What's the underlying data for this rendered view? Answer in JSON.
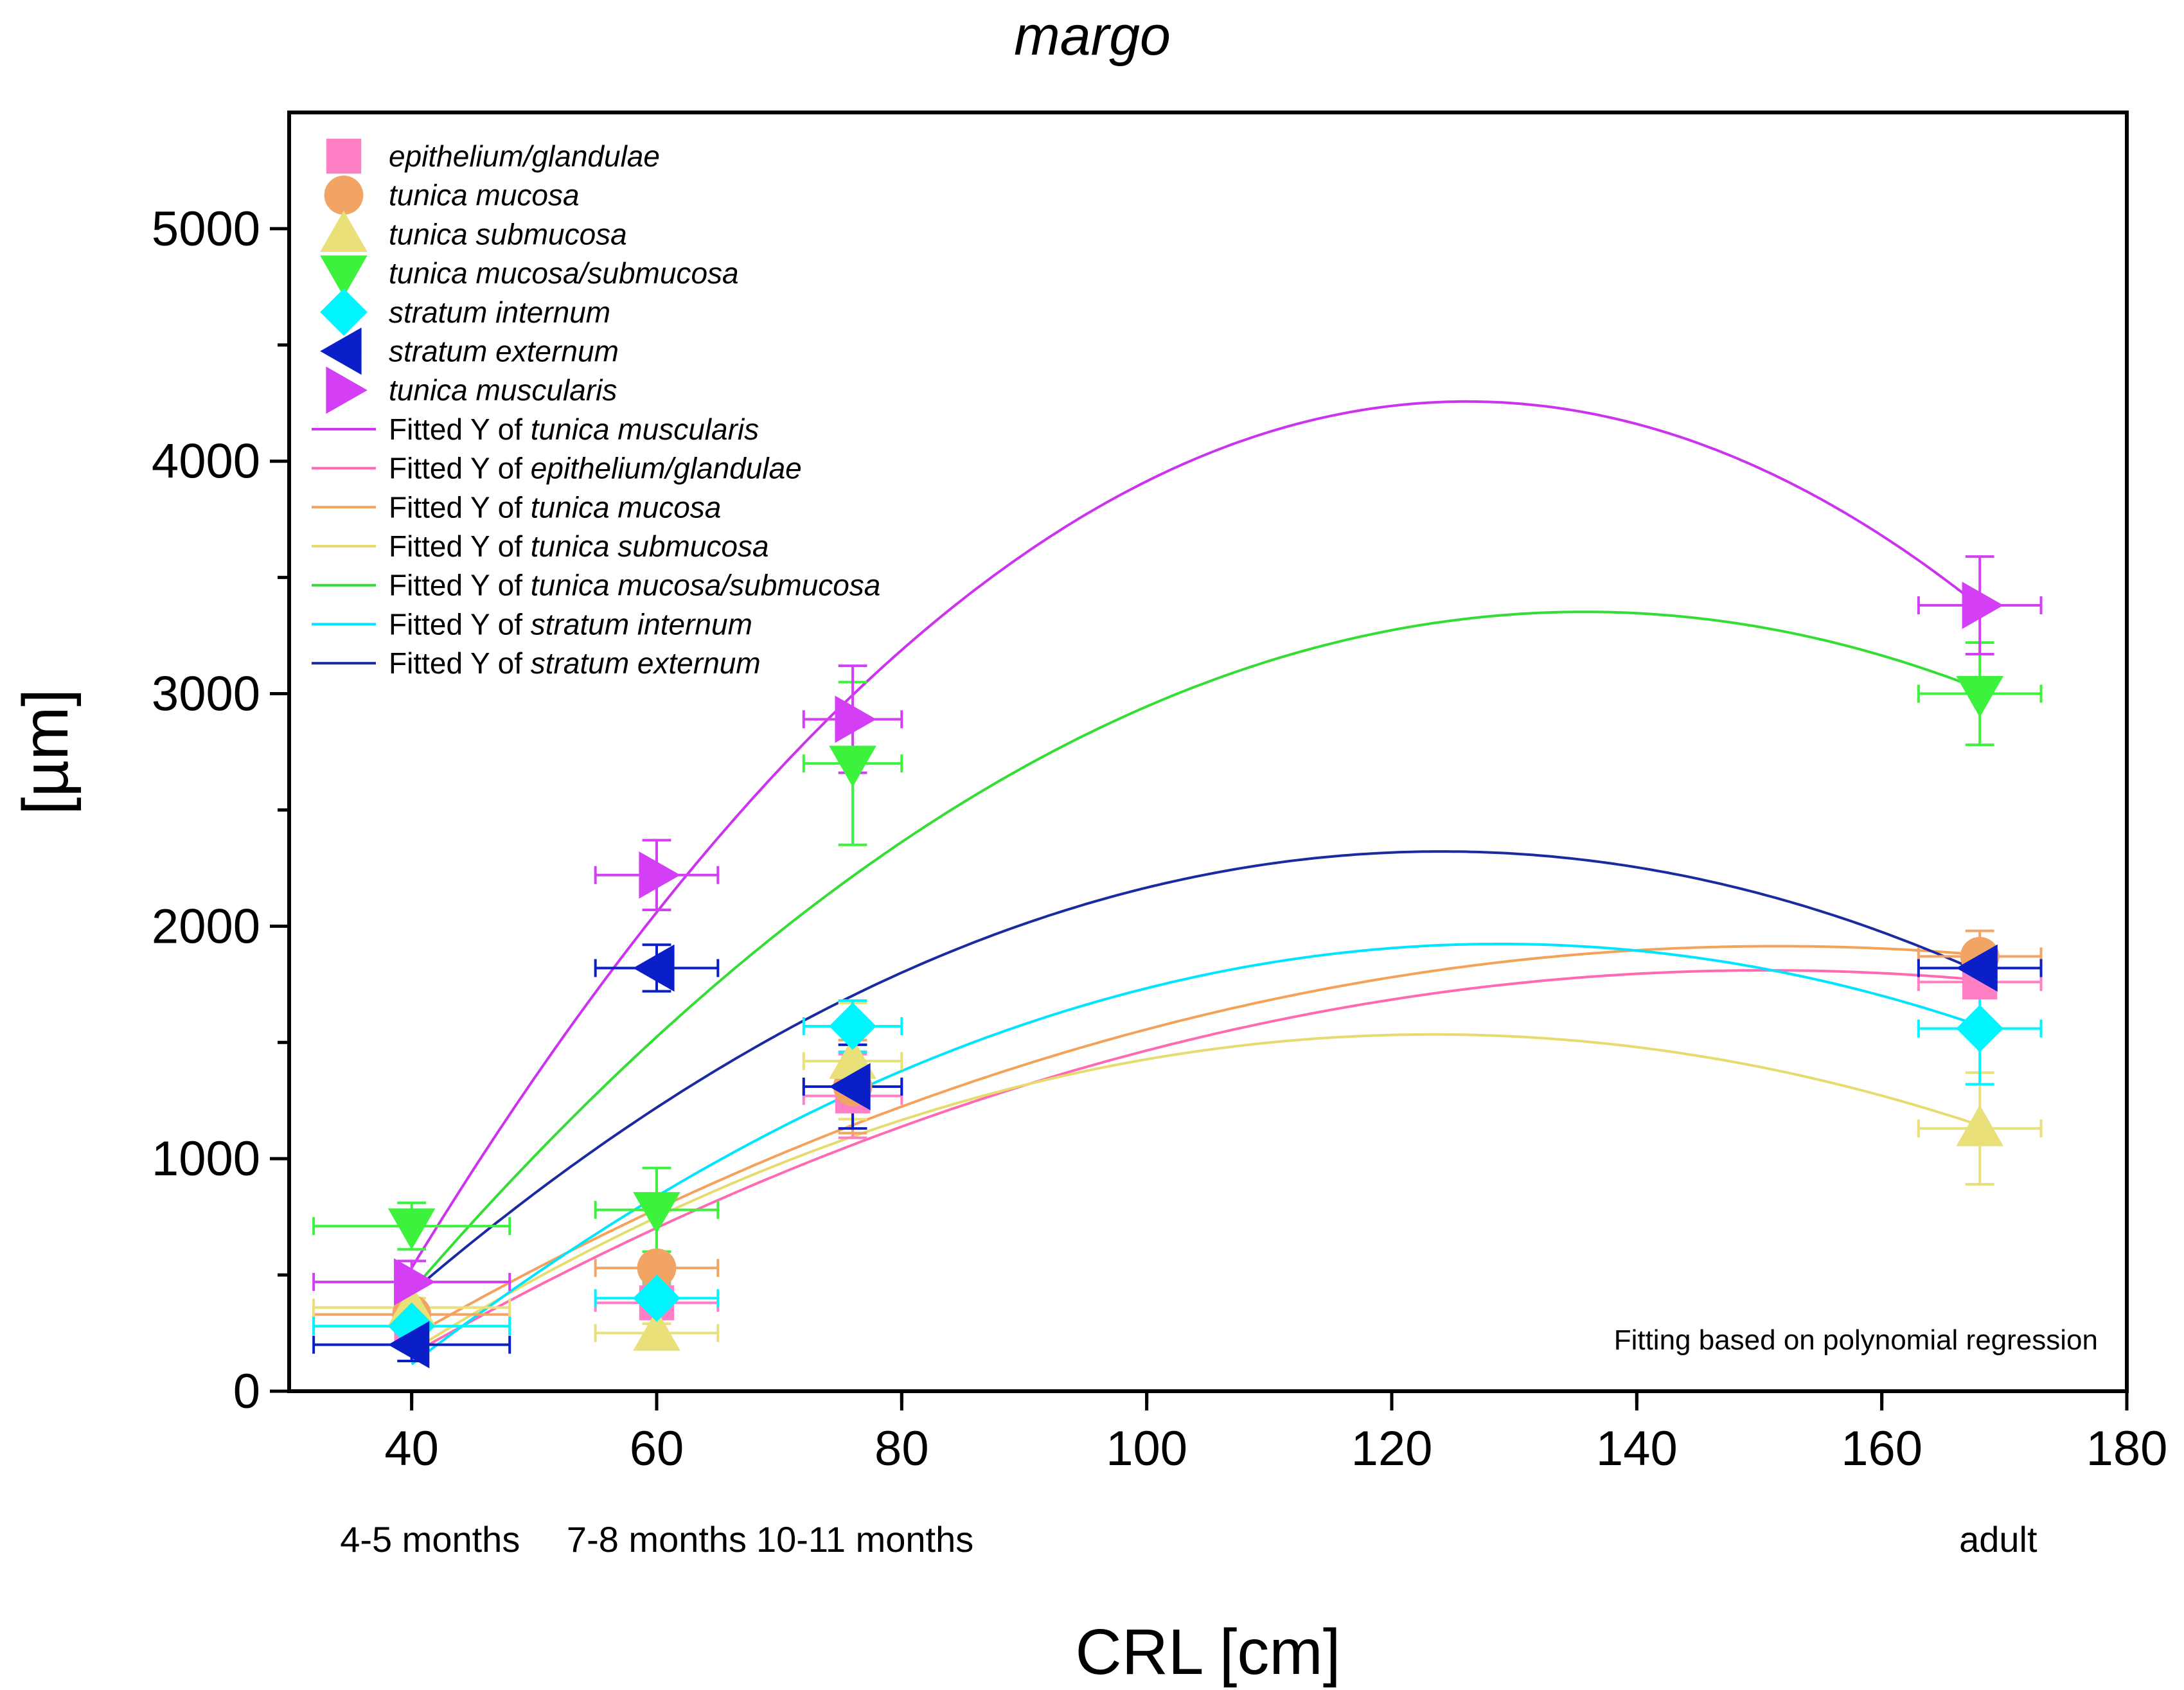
{
  "chart_data": {
    "type": "scatter",
    "title": "margo",
    "xlabel": "CRL [cm]",
    "ylabel": "[µm]",
    "xlim": [
      30,
      180
    ],
    "ylim": [
      0,
      5500
    ],
    "x_ticks": [
      40,
      60,
      80,
      100,
      120,
      140,
      160,
      180
    ],
    "y_ticks": [
      0,
      1000,
      2000,
      3000,
      4000,
      5000
    ],
    "age_labels": [
      {
        "x": 41.5,
        "text": "4-5 months"
      },
      {
        "x": 60,
        "text": "7-8 months"
      },
      {
        "x": 77,
        "text": "10-11 months"
      },
      {
        "x": 169.5,
        "text": "adult"
      }
    ],
    "x_points": [
      40,
      60,
      76,
      168
    ],
    "x_errors": [
      8,
      5,
      4,
      5
    ],
    "series": [
      {
        "name": "epithelium/glandulae",
        "marker": "square",
        "color": "#ff7fc4",
        "fit_color": "#ff69b4",
        "values": [
          280,
          380,
          1270,
          1760
        ],
        "y_errors": [
          40,
          60,
          180,
          60
        ]
      },
      {
        "name": "tunica mucosa",
        "marker": "circle",
        "color": "#f2a464",
        "fit_color": "#f4a15a",
        "values": [
          330,
          530,
          1310,
          1870
        ],
        "y_errors": [
          50,
          70,
          200,
          110
        ]
      },
      {
        "name": "tunica submucosa",
        "marker": "triangle-up",
        "color": "#e9e07a",
        "fit_color": "#e6dc6e",
        "values": [
          360,
          250,
          1420,
          1130
        ],
        "y_errors": [
          40,
          40,
          250,
          240
        ]
      },
      {
        "name": "tunica mucosa/submucosa",
        "marker": "triangle-down",
        "color": "#3df23d",
        "fit_color": "#33dd33",
        "values": [
          710,
          780,
          2700,
          3000
        ],
        "y_errors": [
          100,
          180,
          350,
          220
        ]
      },
      {
        "name": "stratum internum",
        "marker": "diamond",
        "color": "#00f5ff",
        "fit_color": "#00e5ff",
        "values": [
          280,
          400,
          1570,
          1560
        ],
        "y_errors": [
          40,
          70,
          110,
          240
        ]
      },
      {
        "name": "stratum externum",
        "marker": "triangle-left",
        "color": "#0a1fc8",
        "fit_color": "#1a2aa0",
        "values": [
          200,
          1820,
          1310,
          1820
        ],
        "y_errors": [
          70,
          100,
          180,
          60
        ]
      },
      {
        "name": "tunica muscularis",
        "marker": "triangle-right",
        "color": "#d43ff5",
        "fit_color": "#cc33ee",
        "values": [
          470,
          2220,
          2890,
          3380
        ],
        "y_errors": [
          90,
          150,
          230,
          210
        ]
      }
    ],
    "legend_prefix": "Fitted Y of",
    "fit_order": [
      "tunica muscularis",
      "epithelium/glandulae",
      "tunica mucosa",
      "tunica submucosa",
      "tunica mucosa/submucosa",
      "stratum internum",
      "stratum externum"
    ],
    "legend_position": "top-left",
    "annotation": "Fitting based on polynomial regression",
    "fit_type": "polynomial degree 2"
  }
}
